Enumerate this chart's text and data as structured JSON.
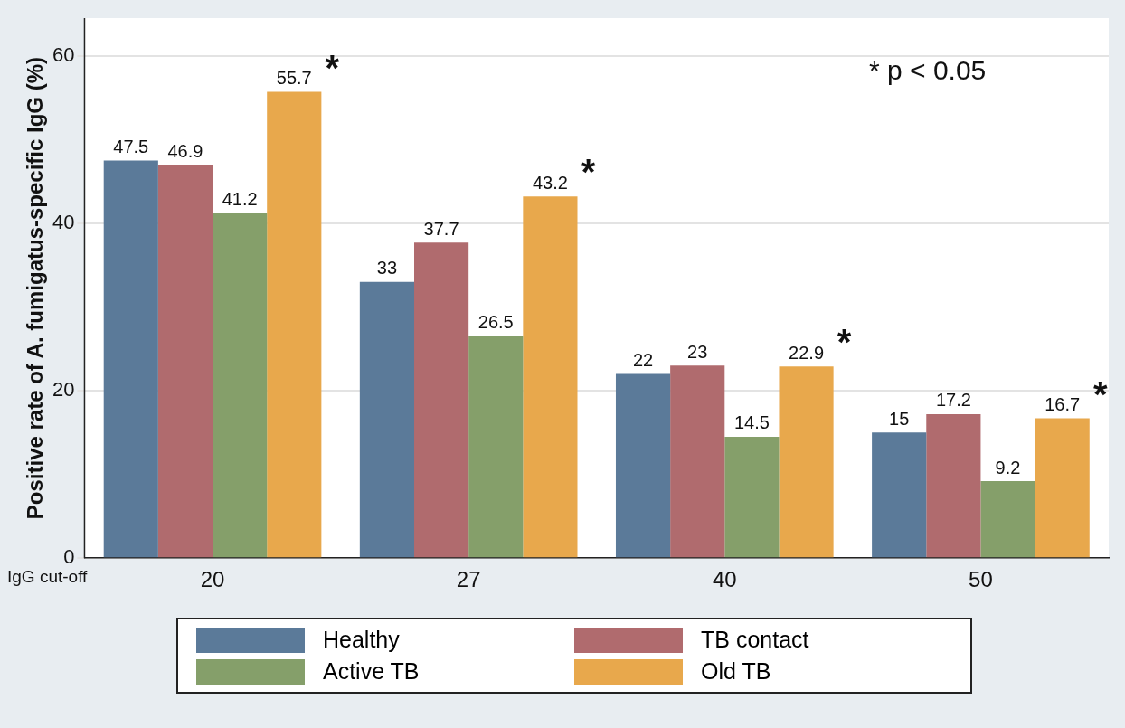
{
  "chart_data": {
    "type": "bar",
    "ylabel": "Positive rate of A. fumigatus-specific IgG (%)",
    "xlabel": "IgG cut-off",
    "categories": [
      "20",
      "27",
      "40",
      "50"
    ],
    "series": [
      {
        "name": "Healthy",
        "color": "#5b7a99",
        "values": [
          47.5,
          33,
          22,
          15
        ]
      },
      {
        "name": "TB contact",
        "color": "#b06b6e",
        "values": [
          46.9,
          37.7,
          23,
          17.2
        ]
      },
      {
        "name": "Active TB",
        "color": "#859f6a",
        "values": [
          41.2,
          26.5,
          14.5,
          9.2
        ]
      },
      {
        "name": "Old TB",
        "color": "#e8a84c",
        "values": [
          55.7,
          43.2,
          22.9,
          16.7
        ]
      }
    ],
    "ylim": [
      0,
      64.5
    ],
    "yticks": [
      0,
      20,
      40,
      60
    ],
    "grid": "y",
    "legend": "bottom",
    "data_labels": true,
    "annotations": [
      "*",
      "*",
      "*",
      "*",
      "* p < 0.05"
    ]
  }
}
